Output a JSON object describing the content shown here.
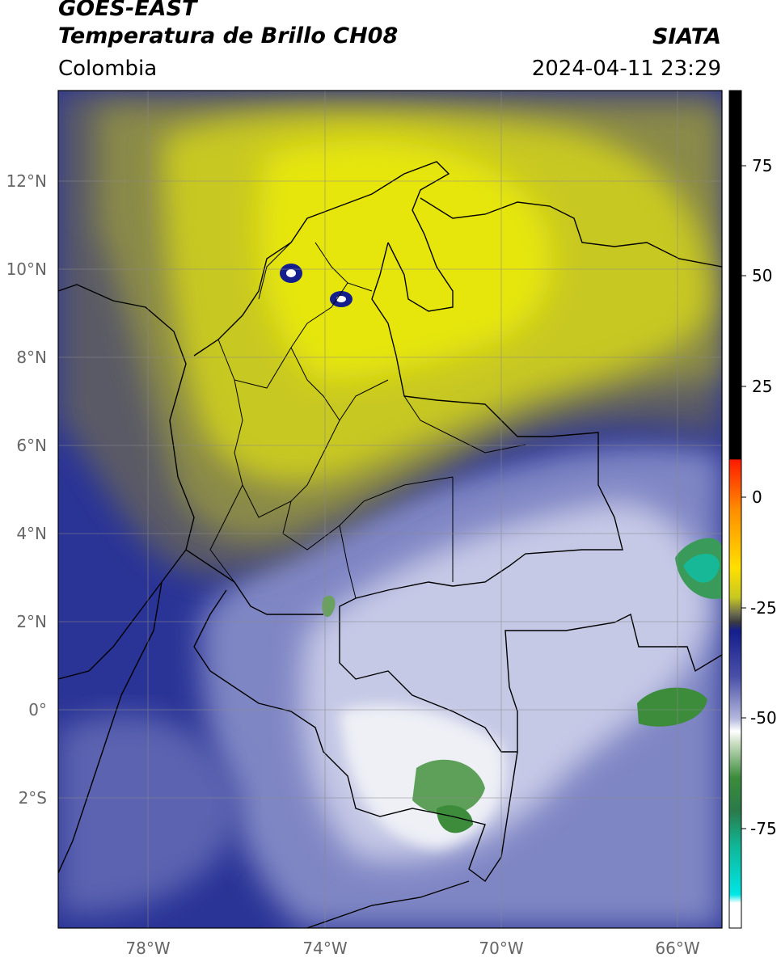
{
  "header": {
    "satellite": "GOES-EAST",
    "product": "Temperatura de Brillo CH08",
    "region": "Colombia",
    "organization": "SIATA",
    "timestamp": "2024-04-11 23:29"
  },
  "axes": {
    "lat_labels": [
      "12°N",
      "10°N",
      "8°N",
      "6°N",
      "4°N",
      "2°N",
      "0°",
      "2°S"
    ],
    "lon_labels": [
      "78°W",
      "74°W",
      "70°W",
      "66°W"
    ]
  },
  "colorbar": {
    "ticks": [
      "75",
      "50",
      "25",
      "0",
      "-25",
      "-50",
      "-75"
    ],
    "colors": {
      "black": "#000000",
      "red": "#ff1a00",
      "orange": "#ff8c00",
      "yellow": "#e6e600",
      "olive": "#9a9a3a",
      "gray": "#5a5a6a",
      "navy": "#141e8c",
      "lavender": "#b4b8dc",
      "white": "#ffffff",
      "green": "#3c8c3c",
      "teal": "#00c8a0",
      "cyan": "#00e6e6"
    }
  }
}
